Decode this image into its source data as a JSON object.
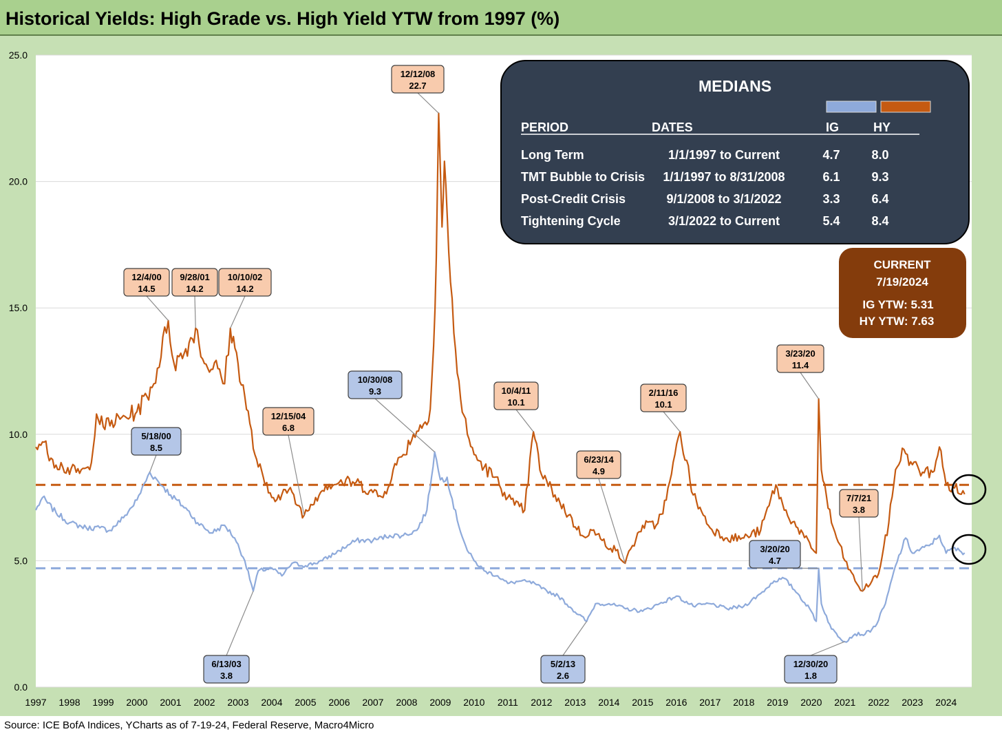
{
  "title": "Historical Yields: High Grade vs. High Yield YTW from 1997 (%)",
  "source": "Source: ICE BofA Indices, YCharts as of 7-19-24, Federal Reserve, Macro4Micro",
  "colors": {
    "ig": "#8eaadb",
    "hy": "#c55a11",
    "ig_label_bg": "#b4c6e7",
    "hy_label_bg": "#f8cbad",
    "medians_bg": "#333f50",
    "current_bg": "#843c0c",
    "panel_bg": "#c6e0b4"
  },
  "chart_data": {
    "type": "line",
    "title": "Historical Yields: High Grade vs. High Yield YTW from 1997 (%)",
    "xlabel": "",
    "ylabel": "",
    "ylim": [
      0,
      25
    ],
    "yticks": [
      "0.0",
      "5.0",
      "10.0",
      "15.0",
      "20.0",
      "25.0"
    ],
    "xticks": [
      "1997",
      "1998",
      "1999",
      "2000",
      "2001",
      "2002",
      "2003",
      "2004",
      "2005",
      "2006",
      "2007",
      "2008",
      "2009",
      "2010",
      "2011",
      "2012",
      "2013",
      "2014",
      "2015",
      "2016",
      "2017",
      "2018",
      "2019",
      "2020",
      "2021",
      "2022",
      "2023",
      "2024"
    ],
    "grid": "horizontal",
    "series": [
      {
        "key": "ig",
        "name": "IG",
        "color": "#8eaadb",
        "points": [
          [
            1997.0,
            7.0
          ],
          [
            1997.2,
            7.5
          ],
          [
            1997.6,
            6.9
          ],
          [
            1998.0,
            6.5
          ],
          [
            1998.5,
            6.3
          ],
          [
            1998.9,
            6.3
          ],
          [
            1999.2,
            6.2
          ],
          [
            1999.6,
            6.7
          ],
          [
            2000.0,
            7.4
          ],
          [
            2000.38,
            8.5
          ],
          [
            2000.8,
            7.9
          ],
          [
            2001.0,
            7.6
          ],
          [
            2001.5,
            7.0
          ],
          [
            2001.8,
            6.5
          ],
          [
            2002.2,
            6.1
          ],
          [
            2002.6,
            6.4
          ],
          [
            2002.9,
            5.9
          ],
          [
            2003.2,
            5.0
          ],
          [
            2003.45,
            3.8
          ],
          [
            2003.6,
            4.6
          ],
          [
            2004.0,
            4.7
          ],
          [
            2004.3,
            4.4
          ],
          [
            2004.6,
            4.9
          ],
          [
            2005.0,
            4.8
          ],
          [
            2005.5,
            5.0
          ],
          [
            2006.0,
            5.4
          ],
          [
            2006.5,
            5.8
          ],
          [
            2007.0,
            5.8
          ],
          [
            2007.5,
            6.0
          ],
          [
            2007.9,
            6.0
          ],
          [
            2008.3,
            6.2
          ],
          [
            2008.6,
            7.0
          ],
          [
            2008.83,
            9.3
          ],
          [
            2009.0,
            8.2
          ],
          [
            2009.2,
            8.3
          ],
          [
            2009.5,
            6.6
          ],
          [
            2009.8,
            5.4
          ],
          [
            2010.0,
            5.0
          ],
          [
            2010.3,
            4.6
          ],
          [
            2010.7,
            4.4
          ],
          [
            2011.0,
            4.1
          ],
          [
            2011.4,
            4.2
          ],
          [
            2011.8,
            4.1
          ],
          [
            2012.0,
            3.9
          ],
          [
            2012.5,
            3.6
          ],
          [
            2012.9,
            3.1
          ],
          [
            2013.34,
            2.6
          ],
          [
            2013.6,
            3.3
          ],
          [
            2014.0,
            3.3
          ],
          [
            2014.5,
            3.1
          ],
          [
            2015.0,
            3.0
          ],
          [
            2015.5,
            3.3
          ],
          [
            2016.0,
            3.6
          ],
          [
            2016.5,
            3.2
          ],
          [
            2017.0,
            3.3
          ],
          [
            2017.5,
            3.1
          ],
          [
            2018.0,
            3.2
          ],
          [
            2018.5,
            3.7
          ],
          [
            2018.9,
            4.2
          ],
          [
            2019.2,
            4.3
          ],
          [
            2019.6,
            3.7
          ],
          [
            2020.0,
            3.0
          ],
          [
            2020.15,
            2.6
          ],
          [
            2020.22,
            4.7
          ],
          [
            2020.3,
            3.3
          ],
          [
            2020.6,
            2.3
          ],
          [
            2020.99,
            1.8
          ],
          [
            2021.3,
            2.1
          ],
          [
            2021.6,
            2.1
          ],
          [
            2021.9,
            2.4
          ],
          [
            2022.2,
            3.3
          ],
          [
            2022.5,
            4.8
          ],
          [
            2022.8,
            5.9
          ],
          [
            2023.0,
            5.3
          ],
          [
            2023.5,
            5.6
          ],
          [
            2023.8,
            6.0
          ],
          [
            2024.0,
            5.3
          ],
          [
            2024.2,
            5.5
          ],
          [
            2024.55,
            5.31
          ]
        ]
      },
      {
        "key": "hy",
        "name": "HY",
        "color": "#c55a11",
        "points": [
          [
            1997.0,
            9.5
          ],
          [
            1997.2,
            9.7
          ],
          [
            1997.5,
            9.0
          ],
          [
            1997.8,
            8.7
          ],
          [
            1998.2,
            8.5
          ],
          [
            1998.6,
            8.6
          ],
          [
            1998.8,
            10.8
          ],
          [
            1999.0,
            10.3
          ],
          [
            1999.5,
            10.6
          ],
          [
            2000.0,
            10.9
          ],
          [
            2000.5,
            12.0
          ],
          [
            2000.93,
            14.5
          ],
          [
            2001.1,
            12.8
          ],
          [
            2001.4,
            13.2
          ],
          [
            2001.74,
            14.2
          ],
          [
            2002.0,
            12.8
          ],
          [
            2002.4,
            12.6
          ],
          [
            2002.6,
            12.0
          ],
          [
            2002.77,
            14.2
          ],
          [
            2003.0,
            12.8
          ],
          [
            2003.2,
            11.5
          ],
          [
            2003.5,
            9.2
          ],
          [
            2003.8,
            8.0
          ],
          [
            2004.0,
            7.5
          ],
          [
            2004.2,
            7.6
          ],
          [
            2004.5,
            7.8
          ],
          [
            2004.96,
            6.8
          ],
          [
            2005.3,
            7.5
          ],
          [
            2005.6,
            8.0
          ],
          [
            2006.0,
            8.1
          ],
          [
            2006.5,
            8.1
          ],
          [
            2007.0,
            7.7
          ],
          [
            2007.3,
            7.5
          ],
          [
            2007.6,
            8.6
          ],
          [
            2007.9,
            9.2
          ],
          [
            2008.2,
            10.0
          ],
          [
            2008.5,
            10.4
          ],
          [
            2008.7,
            11.0
          ],
          [
            2008.8,
            13.5
          ],
          [
            2008.88,
            17.0
          ],
          [
            2008.95,
            22.7
          ],
          [
            2009.05,
            18.2
          ],
          [
            2009.12,
            20.8
          ],
          [
            2009.25,
            17.2
          ],
          [
            2009.4,
            14.0
          ],
          [
            2009.6,
            11.4
          ],
          [
            2009.8,
            10.0
          ],
          [
            2010.0,
            9.2
          ],
          [
            2010.3,
            8.7
          ],
          [
            2010.6,
            8.3
          ],
          [
            2010.9,
            7.7
          ],
          [
            2011.2,
            7.2
          ],
          [
            2011.5,
            7.0
          ],
          [
            2011.76,
            10.1
          ],
          [
            2012.0,
            8.4
          ],
          [
            2012.4,
            7.6
          ],
          [
            2012.8,
            6.8
          ],
          [
            2013.2,
            6.0
          ],
          [
            2013.5,
            6.2
          ],
          [
            2013.8,
            5.8
          ],
          [
            2014.2,
            5.4
          ],
          [
            2014.48,
            4.9
          ],
          [
            2014.7,
            5.6
          ],
          [
            2015.0,
            6.4
          ],
          [
            2015.4,
            6.4
          ],
          [
            2015.7,
            7.4
          ],
          [
            2016.11,
            10.1
          ],
          [
            2016.5,
            7.6
          ],
          [
            2016.8,
            6.8
          ],
          [
            2017.0,
            6.3
          ],
          [
            2017.5,
            5.9
          ],
          [
            2018.0,
            5.9
          ],
          [
            2018.5,
            6.2
          ],
          [
            2018.95,
            8.0
          ],
          [
            2019.2,
            7.0
          ],
          [
            2019.6,
            6.3
          ],
          [
            2020.0,
            5.5
          ],
          [
            2020.15,
            5.3
          ],
          [
            2020.22,
            11.4
          ],
          [
            2020.3,
            8.6
          ],
          [
            2020.6,
            6.5
          ],
          [
            2021.0,
            5.0
          ],
          [
            2021.3,
            4.2
          ],
          [
            2021.52,
            3.8
          ],
          [
            2021.8,
            4.2
          ],
          [
            2022.0,
            4.5
          ],
          [
            2022.3,
            6.5
          ],
          [
            2022.5,
            8.6
          ],
          [
            2022.75,
            9.4
          ],
          [
            2023.0,
            8.8
          ],
          [
            2023.3,
            8.5
          ],
          [
            2023.6,
            8.5
          ],
          [
            2023.8,
            9.5
          ],
          [
            2024.0,
            8.0
          ],
          [
            2024.2,
            7.9
          ],
          [
            2024.55,
            7.63
          ]
        ]
      }
    ],
    "median_lines": {
      "ig": 4.7,
      "hy": 8.0
    },
    "annotations": [
      {
        "key": "a1",
        "series": "hy",
        "date": "12/4/00",
        "value": "14.5",
        "x": 2000.93,
        "y": 14.5
      },
      {
        "key": "a2",
        "series": "hy",
        "date": "9/28/01",
        "value": "14.2",
        "x": 2001.74,
        "y": 14.2
      },
      {
        "key": "a3",
        "series": "hy",
        "date": "10/10/02",
        "value": "14.2",
        "x": 2002.77,
        "y": 14.2
      },
      {
        "key": "a4",
        "series": "hy",
        "date": "12/15/04",
        "value": "6.8",
        "x": 2004.96,
        "y": 6.8
      },
      {
        "key": "a5",
        "series": "hy",
        "date": "12/12/08",
        "value": "22.7",
        "x": 2008.95,
        "y": 22.7
      },
      {
        "key": "a6",
        "series": "hy",
        "date": "10/4/11",
        "value": "10.1",
        "x": 2011.76,
        "y": 10.1
      },
      {
        "key": "a7",
        "series": "hy",
        "date": "6/23/14",
        "value": "4.9",
        "x": 2014.48,
        "y": 4.9
      },
      {
        "key": "a8",
        "series": "hy",
        "date": "2/11/16",
        "value": "10.1",
        "x": 2016.11,
        "y": 10.1
      },
      {
        "key": "a9",
        "series": "hy",
        "date": "3/23/20",
        "value": "11.4",
        "x": 2020.22,
        "y": 11.4
      },
      {
        "key": "a10",
        "series": "hy",
        "date": "7/7/21",
        "value": "3.8",
        "x": 2021.52,
        "y": 3.8
      },
      {
        "key": "b1",
        "series": "ig",
        "date": "5/18/00",
        "value": "8.5",
        "x": 2000.38,
        "y": 8.5
      },
      {
        "key": "b2",
        "series": "ig",
        "date": "6/13/03",
        "value": "3.8",
        "x": 2003.45,
        "y": 3.8
      },
      {
        "key": "b3",
        "series": "ig",
        "date": "10/30/08",
        "value": "9.3",
        "x": 2008.83,
        "y": 9.3
      },
      {
        "key": "b4",
        "series": "ig",
        "date": "5/2/13",
        "value": "2.6",
        "x": 2013.34,
        "y": 2.6
      },
      {
        "key": "b5",
        "series": "ig",
        "date": "3/20/20",
        "value": "4.7",
        "x": 2020.22,
        "y": 4.7
      },
      {
        "key": "b6",
        "series": "ig",
        "date": "12/30/20",
        "value": "1.8",
        "x": 2020.99,
        "y": 1.8
      }
    ]
  },
  "medians_box": {
    "title": "MEDIANS",
    "headers": [
      "PERIOD",
      "DATES",
      "IG",
      "HY"
    ],
    "rows": [
      {
        "period": "Long Term",
        "dates": "1/1/1997 to Current",
        "ig": "4.7",
        "hy": "8.0"
      },
      {
        "period": "TMT Bubble to Crisis",
        "dates": "1/1/1997 to 8/31/2008",
        "ig": "6.1",
        "hy": "9.3"
      },
      {
        "period": "Post-Credit Crisis",
        "dates": "9/1/2008 to 3/1/2022",
        "ig": "3.3",
        "hy": "6.4"
      },
      {
        "period": "Tightening Cycle",
        "dates": "3/1/2022 to Current",
        "ig": "5.4",
        "hy": "8.4"
      }
    ]
  },
  "current_box": {
    "line1": "CURRENT",
    "line2": "7/19/2024",
    "line3": "IG YTW: 5.31",
    "line4": "HY YTW: 7.63"
  }
}
